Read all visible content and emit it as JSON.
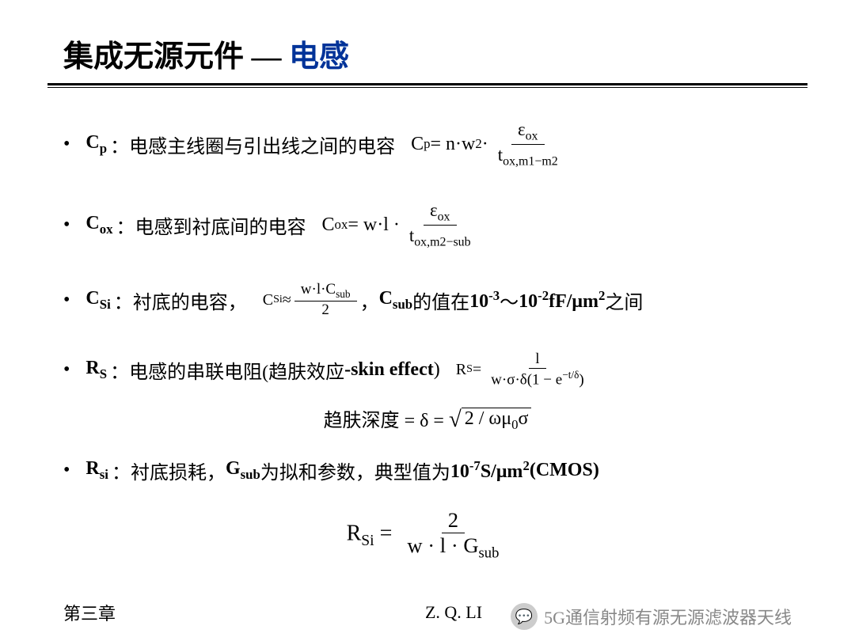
{
  "title_prefix": "集成无源元件 — ",
  "title_accent": "电感",
  "cp": {
    "sym": "C",
    "sub": "p",
    "desc": "：电感主线圈与引出线之间的电容",
    "lhs": "C",
    "lhs_sub": "p",
    "rhs_a": "= n·w",
    "rhs_exp": "2",
    "rhs_b": " · ",
    "num": "ε",
    "num_sub": "ox",
    "den": "t",
    "den_sub": "ox,m1−m2"
  },
  "cox": {
    "sym": "C",
    "sub": "ox",
    "desc": "：电感到衬底间的电容",
    "lhs": "C",
    "lhs_sub": "ox",
    "rhs_a": "= w·l · ",
    "num": "ε",
    "num_sub": "ox",
    "den": "t",
    "den_sub": "ox,m2−sub"
  },
  "csi": {
    "sym": "C",
    "sub": "Si",
    "desc_a": "：衬底的电容，",
    "lhs": "C",
    "lhs_sub": "Si",
    "approx": " ≈ ",
    "num": "w·l·C",
    "num_sub": "sub",
    "den": "2",
    "desc_b": "，",
    "csub": "C",
    "csub_sub": "sub",
    "desc_c": "的值在",
    "range_a": "10",
    "exp_a": "-3",
    "tilde": "～",
    "range_b": "10",
    "exp_b": "-2",
    "unit": " fF/μm",
    "unit_exp": "2",
    "desc_d": "之间"
  },
  "rs": {
    "sym": "R",
    "sub": "S",
    "desc": "：电感的串联电阻(趋肤效应",
    "skin": "-skin effect",
    "close": ")",
    "lhs": "R",
    "lhs_sub": "S",
    "eq": " = ",
    "num": "l",
    "den_a": "w·σ·δ(1 − e",
    "den_exp": "−t/δ",
    "den_b": ")"
  },
  "skin_depth": {
    "label": "趋肤深度 ",
    "eq1": "= δ = ",
    "sqrt_content": "2 / ωμ",
    "sqrt_sub": "0",
    "sqrt_tail": "σ"
  },
  "rsi": {
    "sym": "R",
    "sub": "si",
    "desc_a": "：衬底损耗，",
    "gsub": "G",
    "gsub_sub": "sub",
    "desc_b": "为拟和参数，典型值为",
    "val": "10",
    "val_exp": "-7",
    "unit": " S/μm",
    "unit_exp": "2",
    "cmos": " (CMOS)",
    "lhs": "R",
    "lhs_sub": "Si",
    "eq": "  = ",
    "num": "2",
    "den": "w · l · G",
    "den_sub": "sub"
  },
  "footer": {
    "left": "第三章",
    "center": "Z. Q. LI"
  },
  "watermark": {
    "icon": "💬",
    "text": "5G通信射频有源无源滤波器天线"
  }
}
